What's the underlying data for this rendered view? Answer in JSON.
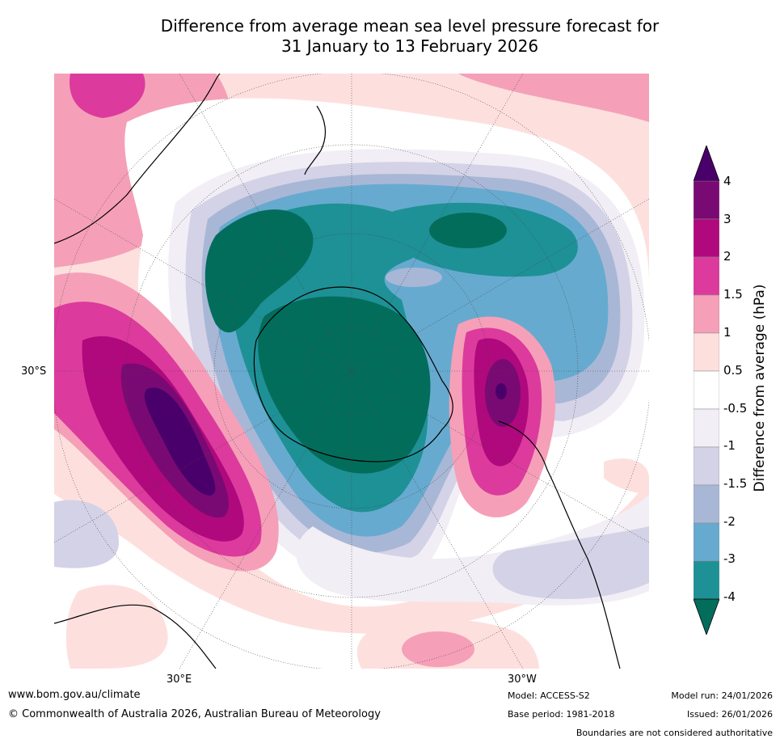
{
  "title_line1": "Difference from average mean sea level pressure forecast for",
  "title_line2": "31 January to 13 February 2026",
  "map": {
    "lat_label": "30°S",
    "lon_labels": [
      "30°E",
      "30°W"
    ]
  },
  "colorbar": {
    "title": "Difference from average (hPa)",
    "ticks": [
      "4",
      "3",
      "2",
      "1.5",
      "1",
      "0.5",
      "-0.5",
      "-1",
      "-1.5",
      "-2",
      "-3",
      "-4"
    ],
    "colors": [
      "#4a006a",
      "#7a0a73",
      "#b0087d",
      "#dc3a9d",
      "#f5a0b8",
      "#fde0de",
      "#ffffff",
      "#f2eef5",
      "#d4d2e6",
      "#a9b7d6",
      "#67aacf",
      "#1e9196",
      "#036d5c"
    ]
  },
  "footer": {
    "url": "www.bom.gov.au/climate",
    "copyright": "© Commonwealth of Australia 2026, Australian Bureau of Meteorology",
    "model": "Model: ACCESS-S2",
    "base_period": "Base period: 1981-2018",
    "model_run": "Model run: 24/01/2026",
    "issued": "Issued: 26/01/2026",
    "disclaimer": "Boundaries are not considered authoritative"
  }
}
